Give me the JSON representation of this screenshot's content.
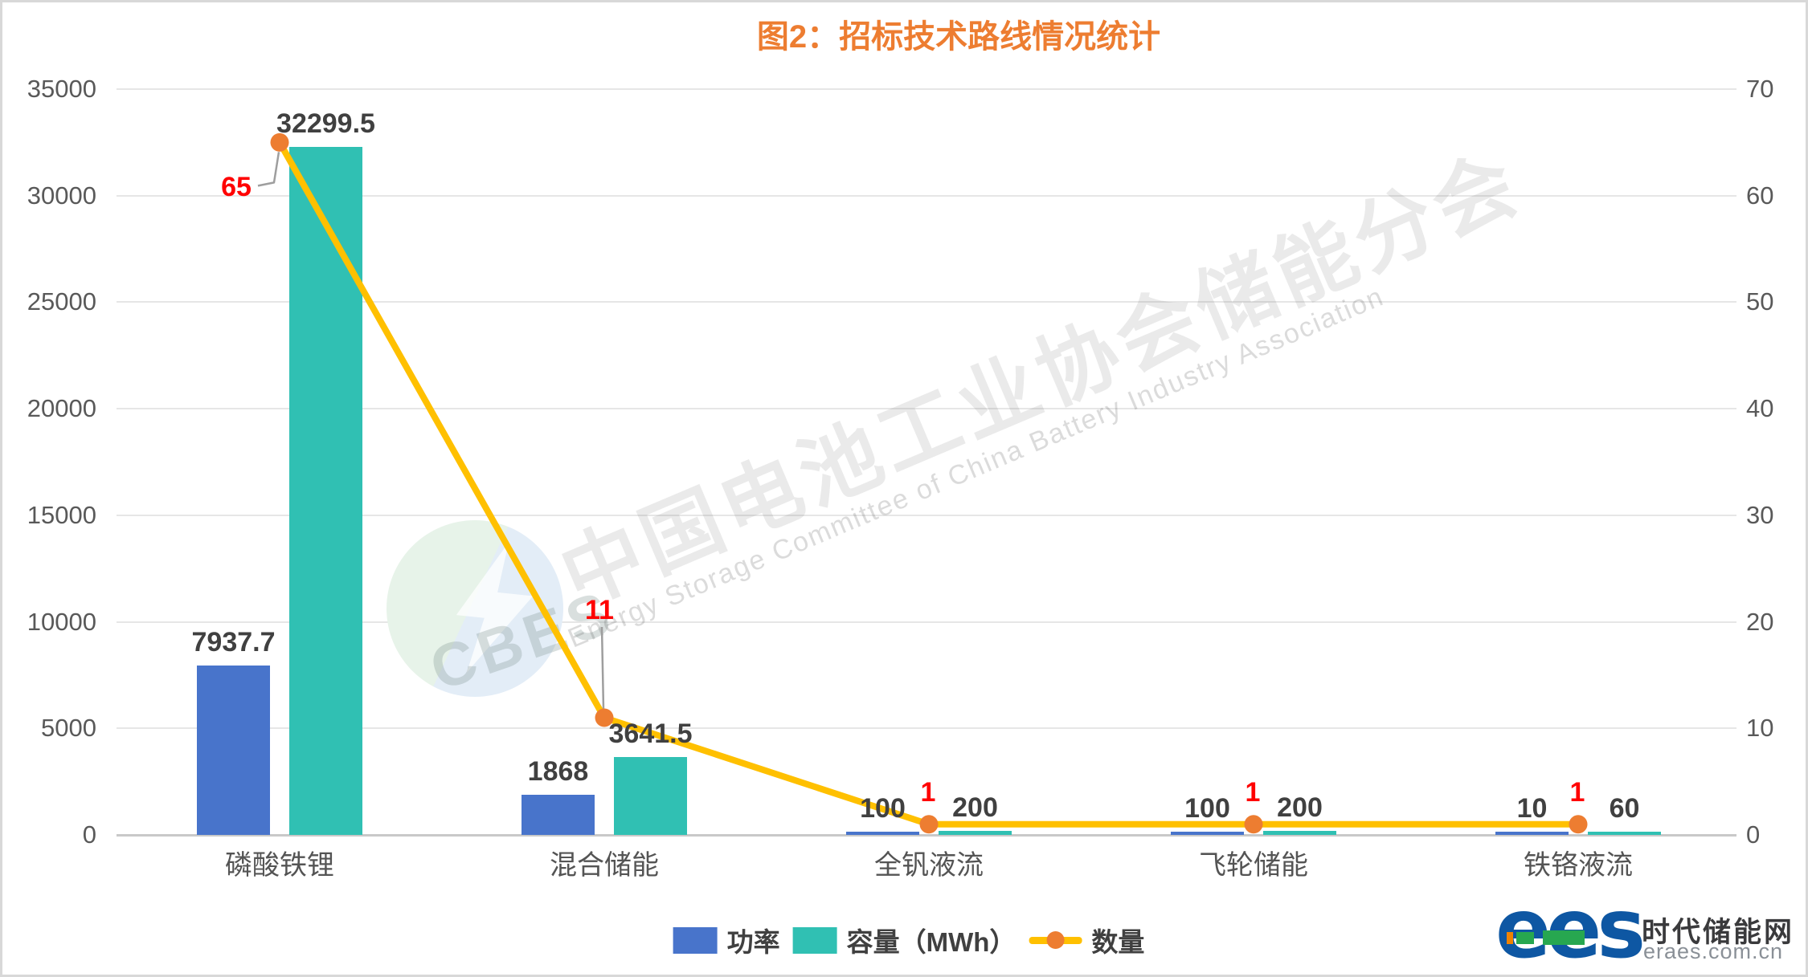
{
  "title": "图2：招标技术路线情况统计",
  "chart_data": {
    "type": "bar",
    "subtype": "bar-line-combo",
    "title": "图2：招标技术路线情况统计",
    "categories": [
      "磷酸铁锂",
      "混合储能",
      "全钒液流",
      "飞轮储能",
      "铁铬液流"
    ],
    "series": [
      {
        "name": "功率",
        "type": "bar",
        "axis": "left",
        "color": "#4874cb",
        "values": [
          7937.7,
          1868,
          100,
          100,
          10
        ],
        "labels": [
          "7937.7",
          "1868",
          "100",
          "100",
          "10"
        ]
      },
      {
        "name": "容量（MWh）",
        "type": "bar",
        "axis": "left",
        "color": "#30c0b3",
        "values": [
          32299.5,
          3641.5,
          200,
          200,
          60
        ],
        "labels": [
          "32299.5",
          "3641.5",
          "200",
          "200",
          "60"
        ]
      },
      {
        "name": "数量",
        "type": "line",
        "axis": "right",
        "color": "#ffc000",
        "marker_color": "#ed7d31",
        "label_color": "#ff0000",
        "values": [
          65,
          11,
          1,
          1,
          1
        ],
        "labels": [
          "65",
          "11",
          "1",
          "1",
          "1"
        ]
      }
    ],
    "left_axis": {
      "min": 0,
      "max": 35000,
      "step": 5000,
      "ticks": [
        "0",
        "5000",
        "10000",
        "15000",
        "20000",
        "25000",
        "30000",
        "35000"
      ]
    },
    "right_axis": {
      "min": 0,
      "max": 70,
      "step": 10,
      "ticks": [
        "0",
        "10",
        "20",
        "30",
        "40",
        "50",
        "60",
        "70"
      ]
    },
    "grid": true,
    "legend_position": "bottom"
  },
  "watermark": {
    "cn": "中国电池工业协会储能分会",
    "en": "Energy Storage Committee of China Battery Industry Association",
    "logo_text": "CBES"
  },
  "footer_logo": {
    "brand": "ees",
    "site_name": "时代储能网",
    "site_url": "eraes.com.cn"
  },
  "colors": {
    "title": "#ed7d31",
    "power_bar": "#4874cb",
    "capacity_bar": "#30c0b3",
    "count_line": "#ffc000",
    "count_marker": "#ed7d31",
    "count_label": "#ff0000",
    "value_label": "#404040",
    "axis_text": "#595959",
    "gridline": "#e6e6e6",
    "frame_border": "#d8d8d8",
    "brand_blue": "#0e57a3"
  }
}
